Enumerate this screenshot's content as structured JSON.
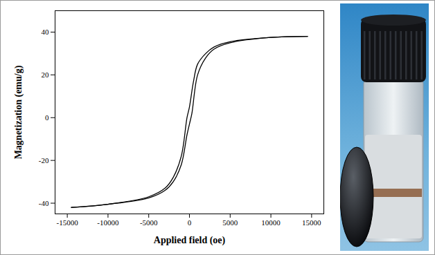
{
  "chart_data": {
    "type": "line",
    "x_label": "Applied field (oe)",
    "y_label": "Magnetization (emu/g)",
    "xlim": [
      -16500,
      16500
    ],
    "ylim": [
      -45,
      50
    ],
    "xticks": [
      -15000,
      -10000,
      -5000,
      0,
      5000,
      10000,
      15000
    ],
    "yticks": [
      -40,
      -20,
      0,
      20,
      40
    ],
    "grid": false,
    "series": [
      {
        "color": "#000000",
        "x": [
          14500,
          10000,
          5000,
          3000,
          2000,
          1000,
          500,
          0,
          -300,
          -1000,
          -2000,
          -3000,
          -5000,
          -10000,
          -14500
        ],
        "values": [
          38,
          37.5,
          35.5,
          33,
          30,
          25,
          17,
          5,
          0,
          -18,
          -28,
          -33,
          -37,
          -40.5,
          -42
        ]
      },
      {
        "color": "#000000",
        "x": [
          -14500,
          -10000,
          -5000,
          -3000,
          -2000,
          -1000,
          -300,
          0,
          300,
          1000,
          2000,
          3000,
          5000,
          10000,
          14500
        ],
        "values": [
          -42,
          -40.5,
          -37.5,
          -34,
          -30,
          -22,
          -8,
          -3,
          2,
          20,
          28,
          32,
          35,
          37.5,
          38
        ]
      }
    ]
  }
}
